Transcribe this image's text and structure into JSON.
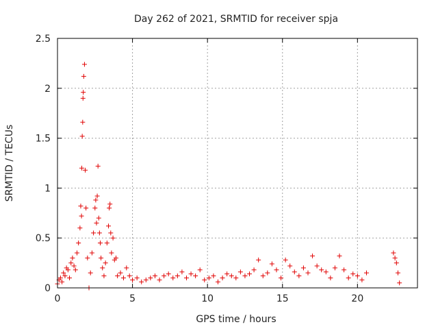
{
  "chart_data": {
    "type": "scatter",
    "title": "Day 262 of 2021, SRMTID for receiver spja",
    "xlabel": "GPS time / hours",
    "ylabel": "SRMTID / TECUs",
    "xlim": [
      0,
      24
    ],
    "ylim": [
      0,
      2.5
    ],
    "x_ticks": [
      0,
      5,
      10,
      15,
      20
    ],
    "x_tick_labels": [
      "0",
      "5",
      "10",
      "15",
      "20"
    ],
    "y_ticks": [
      0,
      0.5,
      1,
      1.5,
      2,
      2.5
    ],
    "y_tick_labels": [
      "0",
      "0.5",
      "1",
      "1.5",
      "2",
      "2.5"
    ],
    "grid": true,
    "marker": "plus",
    "color": "#e00000",
    "series": [
      {
        "name": "SRMTID",
        "x": [
          0.0,
          0.1,
          0.2,
          0.3,
          0.4,
          0.5,
          0.6,
          0.7,
          0.8,
          0.9,
          1.0,
          1.1,
          1.2,
          1.3,
          1.4,
          1.5,
          1.55,
          1.6,
          1.62,
          1.65,
          1.68,
          1.7,
          1.72,
          1.75,
          1.8,
          1.85,
          1.9,
          2.0,
          2.1,
          2.2,
          2.3,
          2.4,
          2.5,
          2.55,
          2.6,
          2.65,
          2.7,
          2.75,
          2.8,
          2.85,
          2.9,
          3.0,
          3.1,
          3.2,
          3.3,
          3.4,
          3.45,
          3.5,
          3.55,
          3.6,
          3.7,
          3.8,
          3.9,
          4.0,
          4.2,
          4.4,
          4.6,
          4.8,
          5.0,
          5.3,
          5.6,
          5.9,
          6.2,
          6.5,
          6.8,
          7.1,
          7.4,
          7.7,
          8.0,
          8.3,
          8.6,
          8.9,
          9.2,
          9.5,
          9.8,
          10.1,
          10.4,
          10.7,
          11.0,
          11.3,
          11.6,
          11.9,
          12.2,
          12.5,
          12.8,
          13.1,
          13.4,
          13.7,
          14.0,
          14.3,
          14.6,
          14.9,
          15.2,
          15.5,
          15.8,
          16.1,
          16.4,
          16.7,
          17.0,
          17.3,
          17.6,
          17.9,
          18.2,
          18.5,
          18.8,
          19.1,
          19.4,
          19.7,
          20.0,
          20.3,
          20.6,
          22.4,
          22.5,
          22.6,
          22.7,
          22.8
        ],
        "y": [
          0.04,
          0.08,
          0.1,
          0.06,
          0.15,
          0.12,
          0.2,
          0.18,
          0.1,
          0.25,
          0.3,
          0.22,
          0.18,
          0.35,
          0.45,
          0.6,
          0.82,
          0.72,
          1.2,
          1.52,
          1.66,
          1.9,
          1.96,
          2.12,
          2.24,
          1.18,
          0.8,
          0.3,
          0.0,
          0.15,
          0.35,
          0.55,
          0.8,
          0.88,
          0.65,
          0.92,
          1.22,
          0.7,
          0.55,
          0.45,
          0.3,
          0.2,
          0.12,
          0.25,
          0.45,
          0.62,
          0.8,
          0.84,
          0.55,
          0.35,
          0.5,
          0.28,
          0.3,
          0.12,
          0.15,
          0.1,
          0.2,
          0.12,
          0.08,
          0.1,
          0.06,
          0.08,
          0.1,
          0.12,
          0.08,
          0.12,
          0.14,
          0.1,
          0.12,
          0.16,
          0.1,
          0.14,
          0.12,
          0.18,
          0.08,
          0.1,
          0.12,
          0.06,
          0.1,
          0.14,
          0.12,
          0.1,
          0.16,
          0.12,
          0.14,
          0.18,
          0.28,
          0.12,
          0.15,
          0.24,
          0.18,
          0.1,
          0.28,
          0.22,
          0.16,
          0.12,
          0.2,
          0.15,
          0.32,
          0.22,
          0.18,
          0.16,
          0.1,
          0.2,
          0.32,
          0.18,
          0.1,
          0.14,
          0.12,
          0.08,
          0.15,
          0.35,
          0.3,
          0.25,
          0.15,
          0.05
        ]
      }
    ]
  }
}
